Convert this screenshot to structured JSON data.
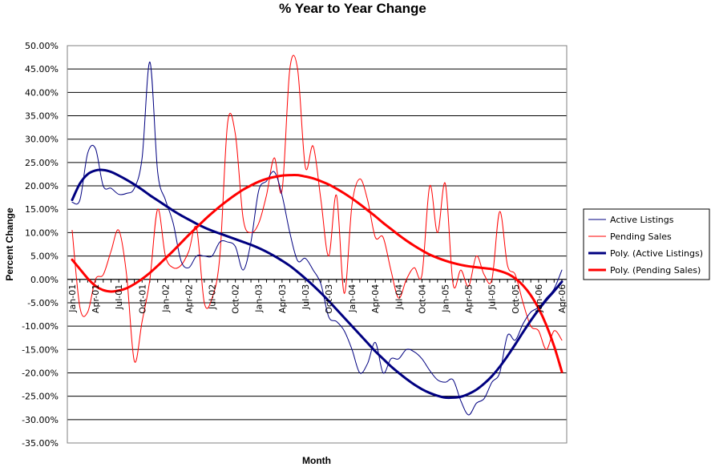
{
  "chart_data": {
    "type": "line",
    "title": "% Year to Year Change",
    "xlabel": "Month",
    "ylabel": "Percent Change",
    "ylim": [
      -35,
      50
    ],
    "ytick_step": 5,
    "ytick_format": "percent_2dp",
    "grid": {
      "y_major": true,
      "x_major": false
    },
    "legend_position": "right",
    "x_tick_labels": [
      "Jan-01",
      "Apr-01",
      "Jul-01",
      "Oct-01",
      "Jan-02",
      "Apr-02",
      "Jul-02",
      "Oct-02",
      "Jan-03",
      "Apr-03",
      "Jul-03",
      "Oct-03",
      "Jan-04",
      "Apr-04",
      "Jul-04",
      "Oct-04",
      "Jan-05",
      "Apr-05",
      "Jul-05",
      "Oct-05",
      "Jan-06",
      "Apr-06"
    ],
    "x_months": [
      "Jan-01",
      "Feb-01",
      "Mar-01",
      "Apr-01",
      "May-01",
      "Jun-01",
      "Jul-01",
      "Aug-01",
      "Sep-01",
      "Oct-01",
      "Nov-01",
      "Dec-01",
      "Jan-02",
      "Feb-02",
      "Mar-02",
      "Apr-02",
      "May-02",
      "Jun-02",
      "Jul-02",
      "Aug-02",
      "Sep-02",
      "Oct-02",
      "Nov-02",
      "Dec-02",
      "Jan-03",
      "Feb-03",
      "Mar-03",
      "Apr-03",
      "May-03",
      "Jun-03",
      "Jul-03",
      "Aug-03",
      "Sep-03",
      "Oct-03",
      "Nov-03",
      "Dec-03",
      "Jan-04",
      "Feb-04",
      "Mar-04",
      "Apr-04",
      "May-04",
      "Jun-04",
      "Jul-04",
      "Aug-04",
      "Sep-04",
      "Oct-04",
      "Nov-04",
      "Dec-04",
      "Jan-05",
      "Feb-05",
      "Mar-05",
      "Apr-05",
      "May-05",
      "Jun-05",
      "Jul-05",
      "Aug-05",
      "Sep-05",
      "Oct-05",
      "Nov-05",
      "Dec-05",
      "Jan-06",
      "Feb-06",
      "Mar-06",
      "Apr-06"
    ],
    "series": [
      {
        "name": "Active Listings",
        "color": "#000080",
        "style": "thin",
        "values": [
          16.5,
          17,
          27,
          28,
          20,
          19.5,
          18.2,
          18.4,
          19.5,
          26,
          46.5,
          23,
          17,
          12,
          4,
          2.5,
          5,
          5,
          5,
          8,
          8,
          7,
          2,
          8,
          19,
          21,
          23,
          18,
          10,
          4,
          4.5,
          2,
          -1,
          -8,
          -9,
          -11,
          -15,
          -20,
          -18,
          -13.5,
          -20,
          -17,
          -17,
          -15,
          -15.5,
          -17,
          -19.5,
          -21.5,
          -22,
          -21.5,
          -26,
          -29,
          -26.5,
          -25.5,
          -22,
          -20,
          -12,
          -13,
          -9.5,
          -7,
          -6,
          -4,
          -2,
          2
        ]
      },
      {
        "name": "Pending Sales",
        "color": "#ff0000",
        "style": "thin",
        "values": [
          10.5,
          -6,
          -7,
          0,
          1,
          6,
          10.5,
          1,
          -17.5,
          -9,
          0,
          15,
          5,
          2.5,
          3,
          6,
          11,
          -5,
          -4,
          5,
          33.5,
          31,
          13,
          10,
          12,
          18,
          26,
          19,
          45,
          45,
          24,
          28.5,
          17,
          5,
          18,
          -3,
          16,
          21.5,
          17,
          9,
          9,
          2,
          -4,
          0,
          2.5,
          1,
          20,
          10,
          20.5,
          -1,
          2,
          -1.5,
          5,
          1,
          0,
          14.5,
          3,
          1,
          -5,
          -10,
          -11,
          -15,
          -11,
          -13
        ]
      },
      {
        "name": "Poly. (Active Listings)",
        "color": "#000080",
        "style": "thick",
        "values": [
          17,
          20.5,
          22.5,
          23.3,
          23.4,
          23,
          22.2,
          21.3,
          20.3,
          19.2,
          18,
          16.9,
          15.8,
          14.7,
          13.7,
          12.8,
          11.9,
          11.1,
          10.4,
          9.8,
          9.2,
          8.6,
          8,
          7.4,
          6.7,
          5.9,
          5,
          4,
          2.9,
          1.6,
          0.2,
          -1.3,
          -2.9,
          -4.6,
          -6.4,
          -8.2,
          -10,
          -11.8,
          -13.6,
          -15.4,
          -17,
          -18.6,
          -20,
          -21.3,
          -22.5,
          -23.5,
          -24.3,
          -24.9,
          -25.3,
          -25.3,
          -25.1,
          -24.5,
          -23.6,
          -22.3,
          -20.7,
          -18.7,
          -16.4,
          -13.9,
          -11.3,
          -8.8,
          -6.5,
          -4.4,
          -2.5,
          -0.5
        ]
      },
      {
        "name": "Poly. (Pending Sales)",
        "color": "#ff0000",
        "style": "thick",
        "values": [
          4.2,
          2.2,
          0.2,
          -1.4,
          -2.3,
          -2.6,
          -2.4,
          -1.9,
          -1,
          0.1,
          1.4,
          2.9,
          4.5,
          6.1,
          7.8,
          9.5,
          11.1,
          12.7,
          14.2,
          15.6,
          16.9,
          18.1,
          19.2,
          20.1,
          20.9,
          21.5,
          21.9,
          22.2,
          22.3,
          22.3,
          22,
          21.6,
          21,
          20.3,
          19.4,
          18.4,
          17.3,
          16.1,
          14.8,
          13.5,
          12.1,
          10.8,
          9.5,
          8.3,
          7.2,
          6.2,
          5.3,
          4.6,
          4,
          3.5,
          3.1,
          2.8,
          2.6,
          2.4,
          2.2,
          1.8,
          1.2,
          0.2,
          -1.3,
          -3.4,
          -6.2,
          -9.8,
          -14.3,
          -19.8
        ]
      }
    ]
  }
}
